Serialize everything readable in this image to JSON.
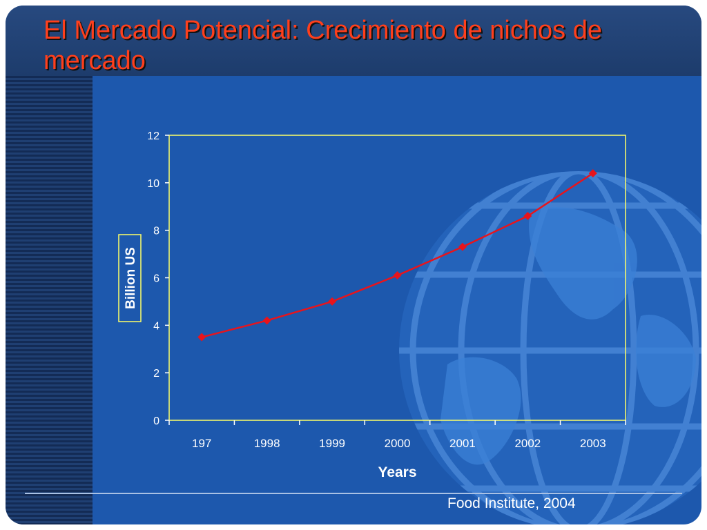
{
  "slide": {
    "title": "El Mercado Potencial: Crecimiento de nichos de mercado",
    "source": "Food Institute, 2004"
  },
  "chart_data": {
    "type": "line",
    "categories": [
      "197",
      "1998",
      "1999",
      "2000",
      "2001",
      "2002",
      "2003"
    ],
    "series": [
      {
        "values": [
          3.5,
          4.2,
          5.0,
          6.1,
          7.3,
          8.6,
          10.4
        ]
      }
    ],
    "title": "",
    "xlabel": "Years",
    "ylabel": "Billion US",
    "ylim": [
      0,
      12
    ],
    "yticks": [
      0,
      2,
      4,
      6,
      8,
      10,
      12
    ],
    "grid": false,
    "legend": "none",
    "colors": {
      "line": "#e8141c",
      "marker": "#e8141c",
      "frame": "#ffff66",
      "text": "#ffffff",
      "background": "#1d58ad"
    }
  }
}
